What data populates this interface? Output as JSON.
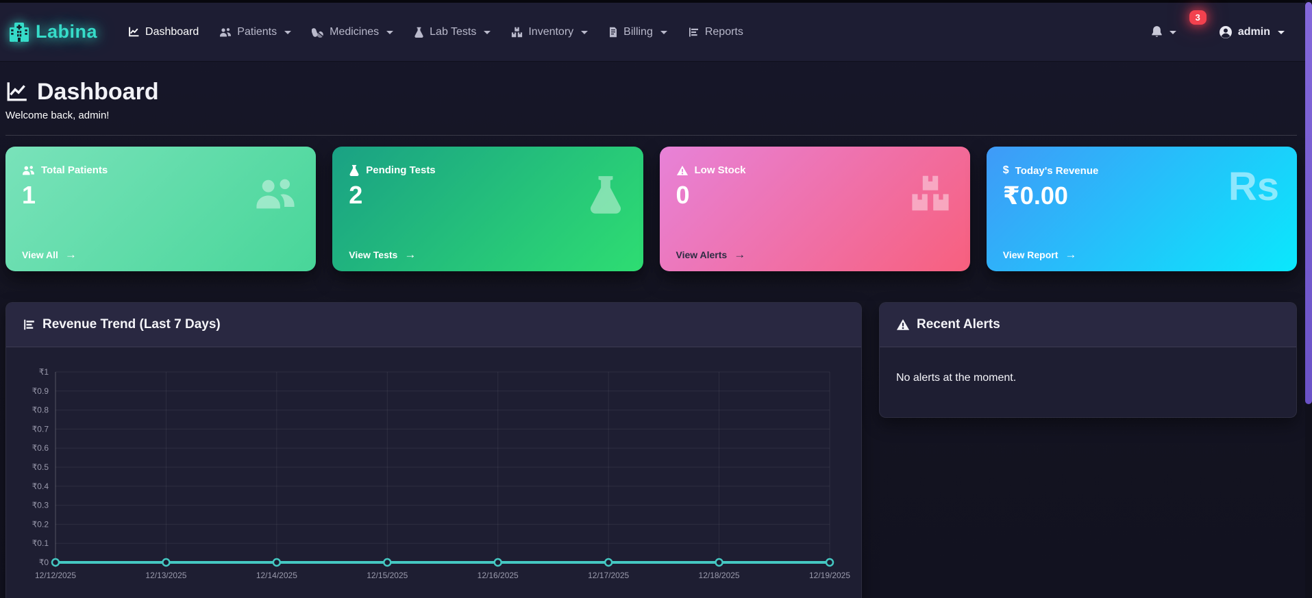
{
  "navbar": {
    "brand": "Labina",
    "items": [
      {
        "label": "Dashboard",
        "icon": "chart-line-icon",
        "active": true
      },
      {
        "label": "Patients",
        "icon": "users-icon",
        "dropdown": true
      },
      {
        "label": "Medicines",
        "icon": "pills-icon",
        "dropdown": true
      },
      {
        "label": "Lab Tests",
        "icon": "flask-icon",
        "dropdown": true
      },
      {
        "label": "Inventory",
        "icon": "boxes-icon",
        "dropdown": true
      },
      {
        "label": "Billing",
        "icon": "invoice-icon",
        "dropdown": true
      },
      {
        "label": "Reports",
        "icon": "chart-bar-icon"
      }
    ],
    "notifications_badge": "3",
    "user": "admin"
  },
  "page": {
    "title": "Dashboard",
    "subtitle": "Welcome back, admin!"
  },
  "ui": {
    "arrow": "→"
  },
  "stat_cards": [
    {
      "label": "Total Patients",
      "value": "1",
      "link_label": "View All",
      "icon": "users-icon",
      "big_icon": "users-icon",
      "gradient_from": "#79e2ba",
      "gradient_to": "#48d699",
      "link_style": "light"
    },
    {
      "label": "Pending Tests",
      "value": "2",
      "link_label": "View Tests",
      "icon": "flask-icon",
      "big_icon": "flask-icon",
      "gradient_from": "#1aa184",
      "gradient_to": "#2edd72",
      "link_style": "light"
    },
    {
      "label": "Low Stock",
      "value": "0",
      "link_label": "View Alerts",
      "icon": "warning-icon",
      "big_icon": "boxes-icon",
      "gradient_from": "#e782d8",
      "gradient_to": "#f7607e",
      "link_style": "dark"
    },
    {
      "label": "Today's Revenue",
      "value": "₹0.00",
      "link_label": "View Report",
      "icon_glyph": "$",
      "big_icon_text": "Rs",
      "gradient_from": "#3f9af8",
      "gradient_to": "#0ae8fc",
      "link_style": "light"
    }
  ],
  "panels": {
    "revenue": {
      "title": "Revenue Trend (Last 7 Days)"
    },
    "alerts": {
      "title": "Recent Alerts",
      "empty_message": "No alerts at the moment."
    }
  },
  "chart_data": {
    "type": "line",
    "title": "Revenue Trend (Last 7 Days)",
    "x": [
      "12/12/2025",
      "12/13/2025",
      "12/14/2025",
      "12/15/2025",
      "12/16/2025",
      "12/17/2025",
      "12/18/2025",
      "12/19/2025"
    ],
    "series": [
      {
        "name": "Revenue",
        "values": [
          0,
          0,
          0,
          0,
          0,
          0,
          0,
          0
        ]
      }
    ],
    "ylim": [
      0,
      1
    ],
    "yticks": [
      "₹1",
      "₹0.9",
      "₹0.8",
      "₹0.7",
      "₹0.6",
      "₹0.5",
      "₹0.4",
      "₹0.3",
      "₹0.2",
      "₹0.1",
      "₹0"
    ],
    "grid": true,
    "legend": false,
    "line_color": "#45c8c2",
    "point_fill": "#1b1b30",
    "grid_color": "rgba(255,255,255,0.07)",
    "axis_color": "rgba(255,255,255,0.18)",
    "tick_color": "#9b9bad"
  }
}
